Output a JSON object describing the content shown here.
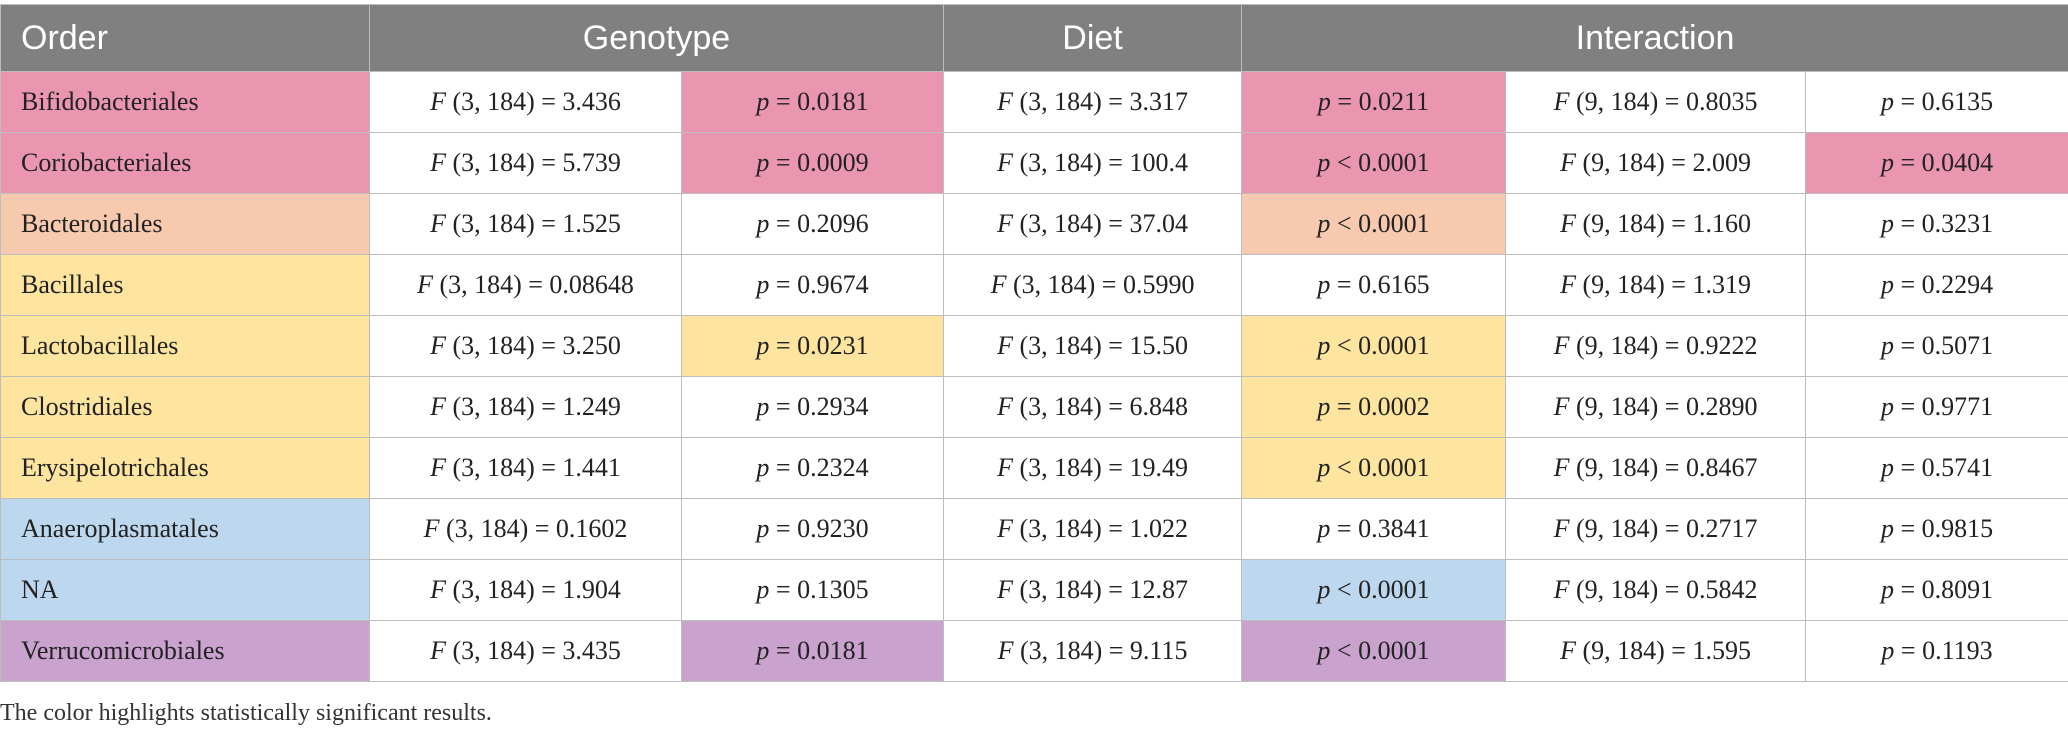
{
  "colors": {
    "pink": "#eb96b0",
    "peach": "#f7c9ae",
    "yellow": "#fde49f",
    "blue": "#bcd7ee",
    "purple": "#c9a3cd",
    "header_bg": "#808080"
  },
  "table": {
    "headers": {
      "order": "Order",
      "genotype": "Genotype",
      "diet": "Diet",
      "interaction": "Interaction"
    },
    "rows": [
      {
        "order": "Bifidobacteriales",
        "color": "pink",
        "genotype_f": "F (3, 184) = 3.436",
        "genotype_p": "p = 0.0181",
        "genotype_sig": true,
        "diet_f": "F (3, 184) = 3.317",
        "diet_p": "p = 0.0211",
        "diet_sig": true,
        "interaction_f": "F (9, 184) = 0.8035",
        "interaction_p": "p = 0.6135",
        "interaction_sig": false
      },
      {
        "order": "Coriobacteriales",
        "color": "pink",
        "genotype_f": "F (3, 184) = 5.739",
        "genotype_p": "p = 0.0009",
        "genotype_sig": true,
        "diet_f": "F (3, 184) = 100.4",
        "diet_p": "p < 0.0001",
        "diet_sig": true,
        "interaction_f": "F (9, 184) = 2.009",
        "interaction_p": "p = 0.0404",
        "interaction_sig": true
      },
      {
        "order": "Bacteroidales",
        "color": "peach",
        "genotype_f": "F (3, 184) = 1.525",
        "genotype_p": "p = 0.2096",
        "genotype_sig": false,
        "diet_f": "F (3, 184) = 37.04",
        "diet_p": "p < 0.0001",
        "diet_sig": true,
        "interaction_f": "F (9, 184) = 1.160",
        "interaction_p": "p = 0.3231",
        "interaction_sig": false
      },
      {
        "order": "Bacillales",
        "color": "yellow",
        "genotype_f": "F (3, 184) = 0.08648",
        "genotype_p": "p = 0.9674",
        "genotype_sig": false,
        "diet_f": "F (3, 184) = 0.5990",
        "diet_p": "p = 0.6165",
        "diet_sig": false,
        "interaction_f": "F (9, 184) = 1.319",
        "interaction_p": "p = 0.2294",
        "interaction_sig": false
      },
      {
        "order": "Lactobacillales",
        "color": "yellow",
        "genotype_f": "F (3, 184) = 3.250",
        "genotype_p": "p = 0.0231",
        "genotype_sig": true,
        "diet_f": "F (3, 184) = 15.50",
        "diet_p": "p < 0.0001",
        "diet_sig": true,
        "interaction_f": "F (9, 184) = 0.9222",
        "interaction_p": "p = 0.5071",
        "interaction_sig": false
      },
      {
        "order": "Clostridiales",
        "color": "yellow",
        "genotype_f": "F (3, 184) = 1.249",
        "genotype_p": "p = 0.2934",
        "genotype_sig": false,
        "diet_f": "F (3, 184) = 6.848",
        "diet_p": "p = 0.0002",
        "diet_sig": true,
        "interaction_f": "F (9, 184) = 0.2890",
        "interaction_p": "p = 0.9771",
        "interaction_sig": false
      },
      {
        "order": "Erysipelotrichales",
        "color": "yellow",
        "genotype_f": "F (3, 184) = 1.441",
        "genotype_p": "p = 0.2324",
        "genotype_sig": false,
        "diet_f": "F (3, 184) = 19.49",
        "diet_p": "p < 0.0001",
        "diet_sig": true,
        "interaction_f": "F (9, 184) = 0.8467",
        "interaction_p": "p = 0.5741",
        "interaction_sig": false
      },
      {
        "order": "Anaeroplasmatales",
        "color": "blue",
        "genotype_f": "F (3, 184) = 0.1602",
        "genotype_p": "p = 0.9230",
        "genotype_sig": false,
        "diet_f": "F (3, 184) = 1.022",
        "diet_p": "p = 0.3841",
        "diet_sig": false,
        "interaction_f": "F (9, 184) = 0.2717",
        "interaction_p": "p = 0.9815",
        "interaction_sig": false
      },
      {
        "order": "NA",
        "color": "blue",
        "genotype_f": "F (3, 184) = 1.904",
        "genotype_p": "p = 0.1305",
        "genotype_sig": false,
        "diet_f": "F (3, 184) = 12.87",
        "diet_p": "p < 0.0001",
        "diet_sig": true,
        "interaction_f": "F (9, 184) = 0.5842",
        "interaction_p": "p = 0.8091",
        "interaction_sig": false
      },
      {
        "order": "Verrucomicrobiales",
        "color": "purple",
        "genotype_f": "F (3, 184) = 3.435",
        "genotype_p": "p = 0.0181",
        "genotype_sig": true,
        "diet_f": "F (3, 184) = 9.115",
        "diet_p": "p < 0.0001",
        "diet_sig": true,
        "interaction_f": "F (9, 184) = 1.595",
        "interaction_p": "p = 0.1193",
        "interaction_sig": false
      }
    ]
  },
  "caption": "The color highlights statistically significant results."
}
